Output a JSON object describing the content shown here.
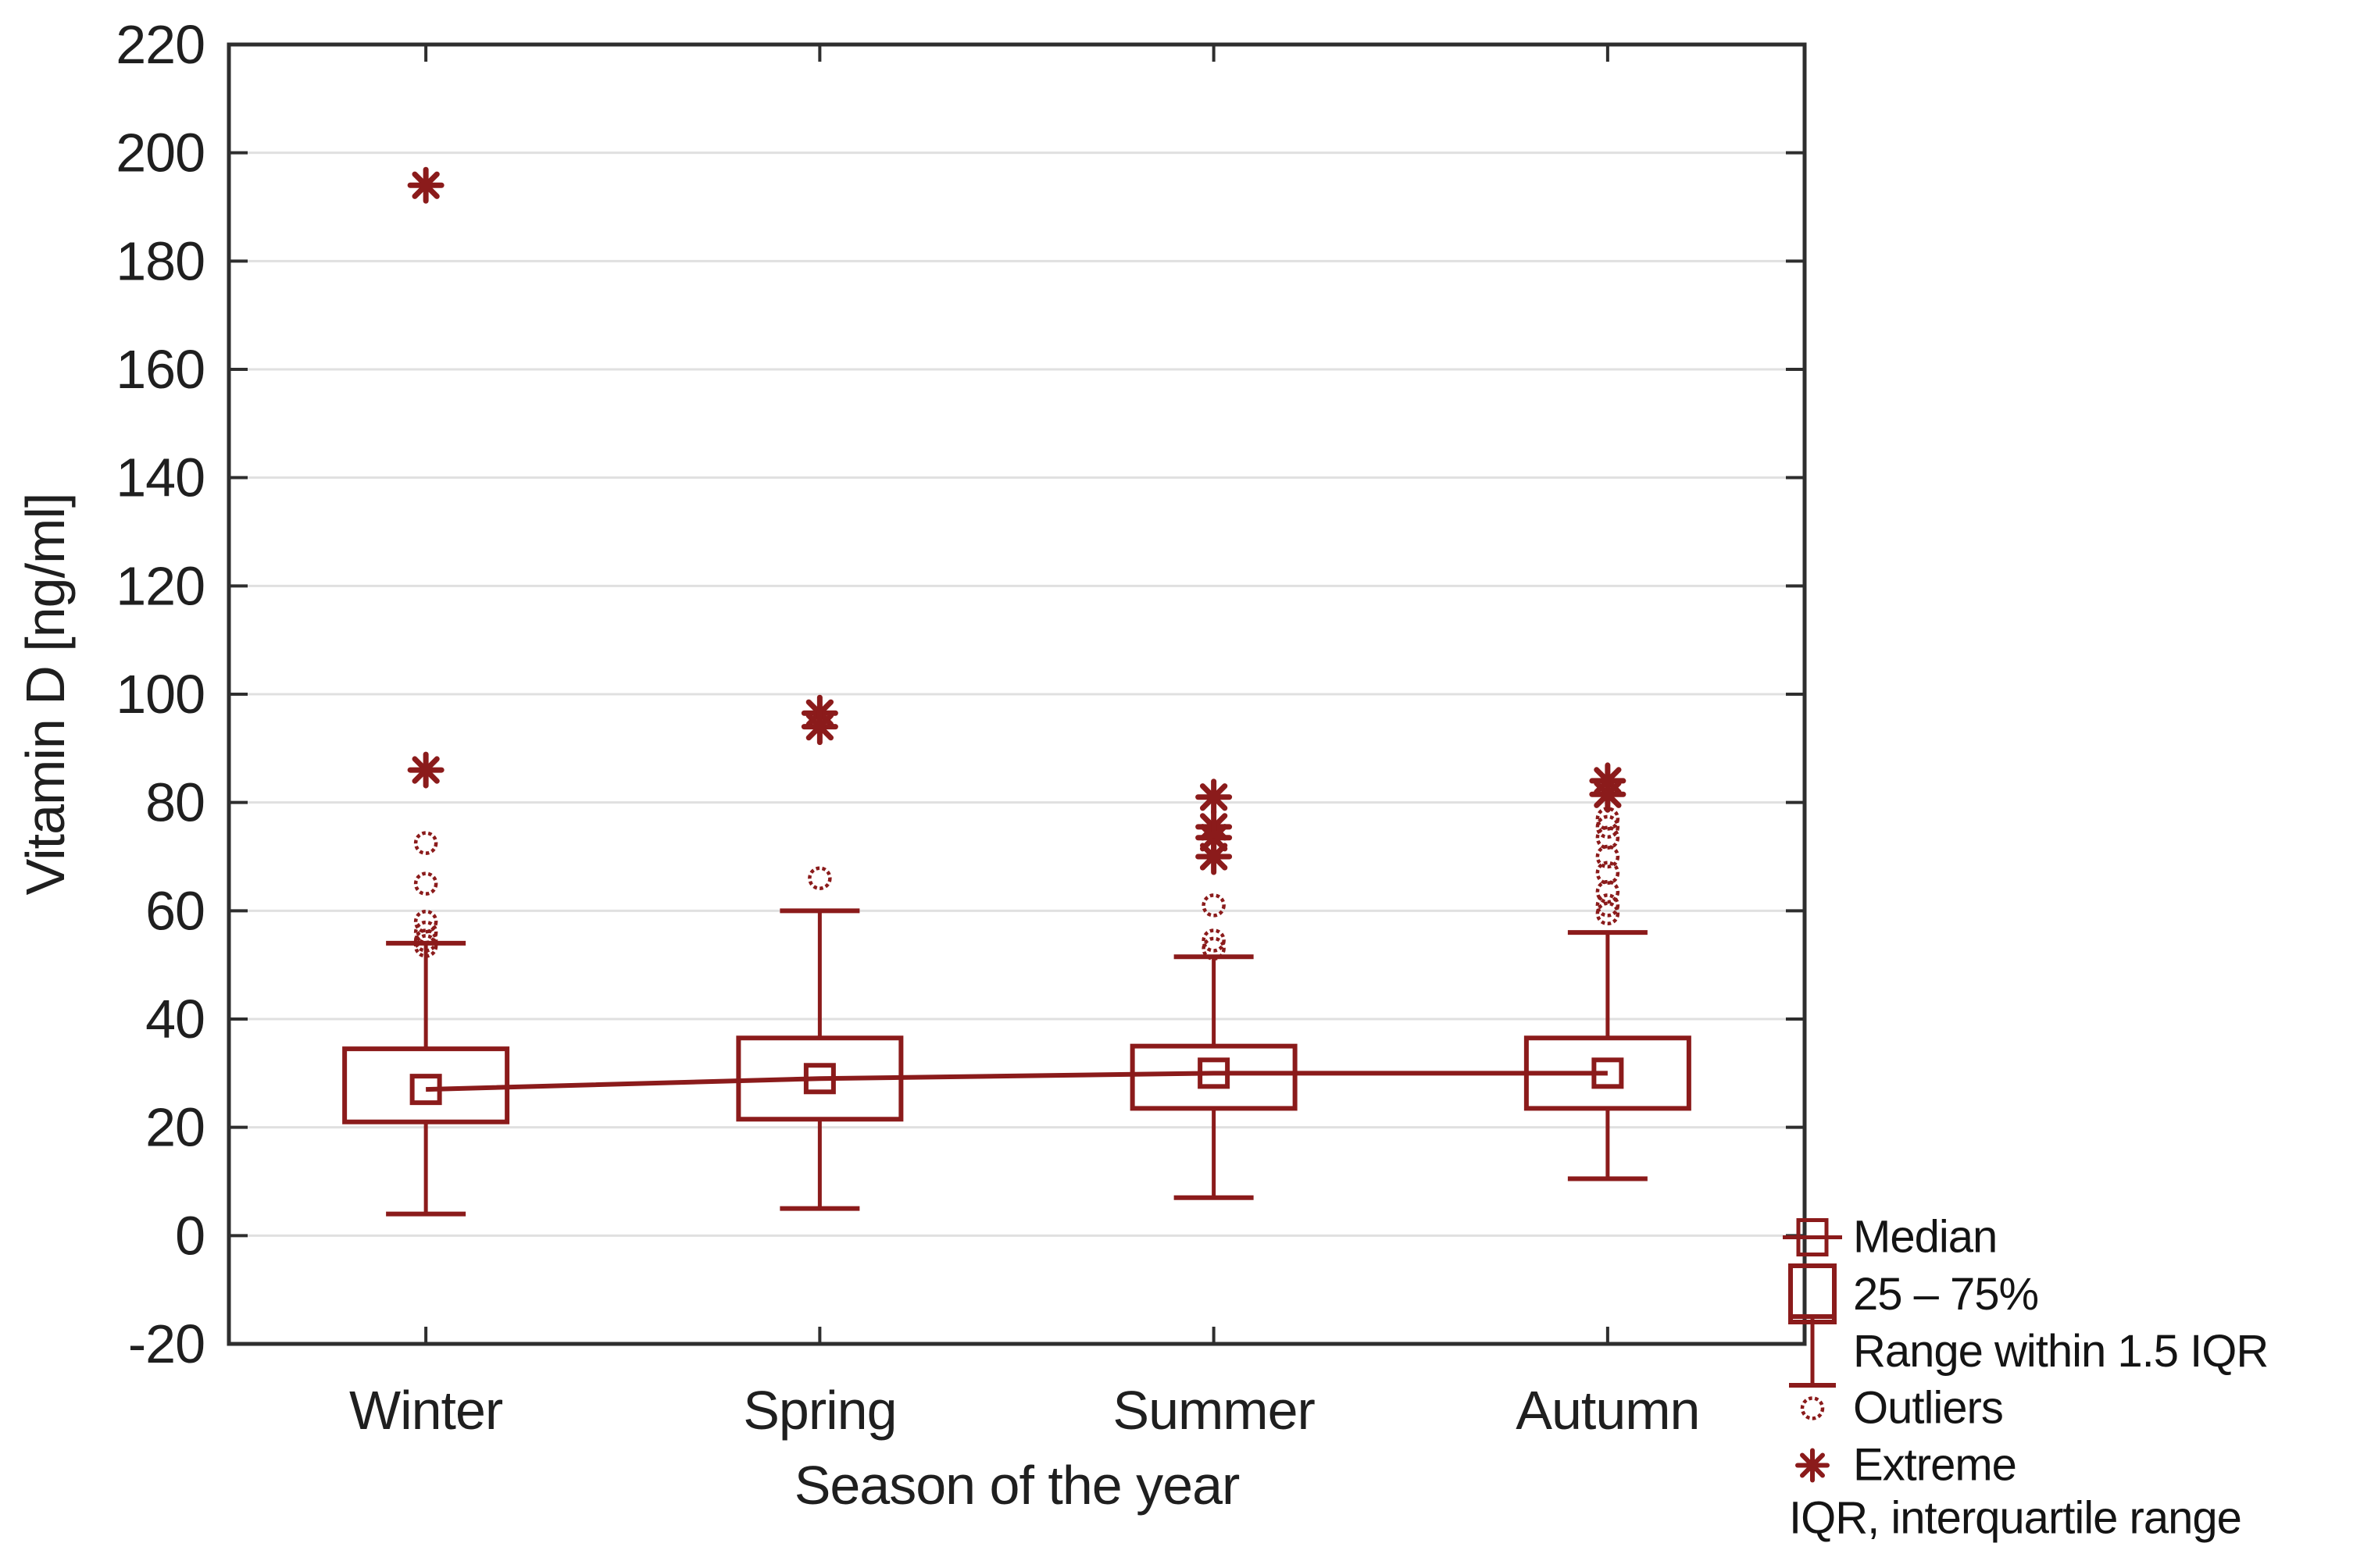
{
  "colors": {
    "marker_red": "#8B1B1B",
    "grid_gray": "#E0E0E0",
    "axis_dark": "#2E2E2E",
    "text_dark": "#1F1F1F"
  },
  "legend": {
    "items": [
      {
        "glyph": "median-marker",
        "label": "Median"
      },
      {
        "glyph": "box-25-75",
        "label": "25 – 75%"
      },
      {
        "glyph": "whisker-range",
        "label": "Range within 1.5 IQR"
      },
      {
        "glyph": "outlier-circle",
        "label": "Outliers"
      },
      {
        "glyph": "extreme-star",
        "label": "Extreme"
      }
    ],
    "footnote": "IQR, interquartile range"
  },
  "chart_data": {
    "type": "box",
    "title": "",
    "xlabel": "Season of the year",
    "ylabel": "Vitamin D [ng/ml]",
    "ylim": [
      -20,
      220
    ],
    "ytick_step": 20,
    "grid": "horizontal",
    "legend_position": "bottom-right",
    "categories": [
      "Winter",
      "Spring",
      "Summer",
      "Autumn"
    ],
    "series": [
      {
        "name": "Winter",
        "median": 27,
        "q1": 21,
        "q3": 34.5,
        "whisker_low": 4,
        "whisker_high": 54,
        "outliers": [
          72.5,
          65,
          58,
          56,
          54.5,
          53.5
        ],
        "extremes": [
          194,
          86
        ]
      },
      {
        "name": "Spring",
        "median": 29,
        "q1": 21.5,
        "q3": 36.5,
        "whisker_low": 5,
        "whisker_high": 60,
        "outliers": [
          66
        ],
        "extremes": [
          96.5,
          94
        ]
      },
      {
        "name": "Summer",
        "median": 30,
        "q1": 23.5,
        "q3": 35,
        "whisker_low": 7,
        "whisker_high": 51.5,
        "outliers": [
          61,
          54.5,
          53
        ],
        "extremes": [
          81,
          75.5,
          73.5,
          70
        ]
      },
      {
        "name": "Autumn",
        "median": 30,
        "q1": 23.5,
        "q3": 36.5,
        "whisker_low": 10.5,
        "whisker_high": 56,
        "outliers": [
          77,
          75.5,
          73.5,
          70,
          67,
          63.5,
          61,
          59.5
        ],
        "extremes": [
          84,
          81.5
        ]
      }
    ],
    "median_connector": true
  }
}
